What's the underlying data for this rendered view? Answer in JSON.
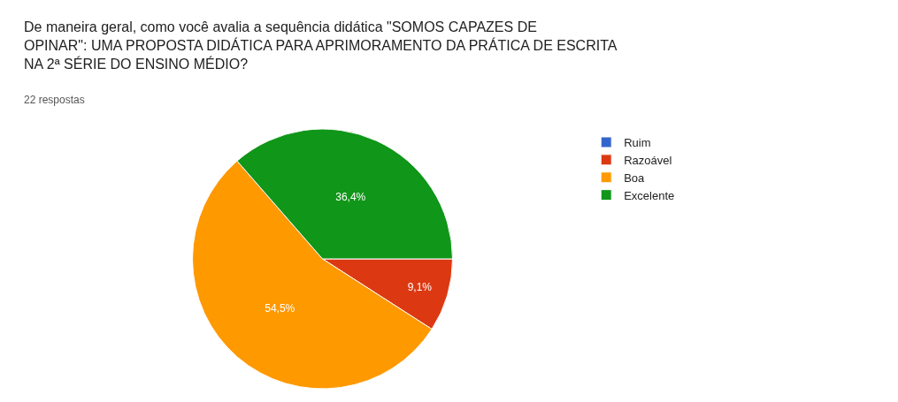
{
  "chart_data": {
    "type": "pie",
    "title": "De maneira geral, como você avalia a sequência didática \"SOMOS CAPAZES DE OPINAR\": UMA PROPOSTA DIDÁTICA PARA APRIMORAMENTO DA PRÁTICA DE ESCRITA  NA 2ª SÉRIE DO ENSINO MÉDIO?",
    "subtitle": "22 respostas",
    "categories": [
      "Ruim",
      "Razoável",
      "Boa",
      "Excelente"
    ],
    "values": [
      0,
      9.1,
      54.5,
      36.4
    ],
    "value_labels": [
      null,
      "9,1%",
      "54,5%",
      "36,4%"
    ],
    "colors": [
      "#3366cc",
      "#dc3912",
      "#ff9900",
      "#109618"
    ],
    "legend": "right"
  }
}
